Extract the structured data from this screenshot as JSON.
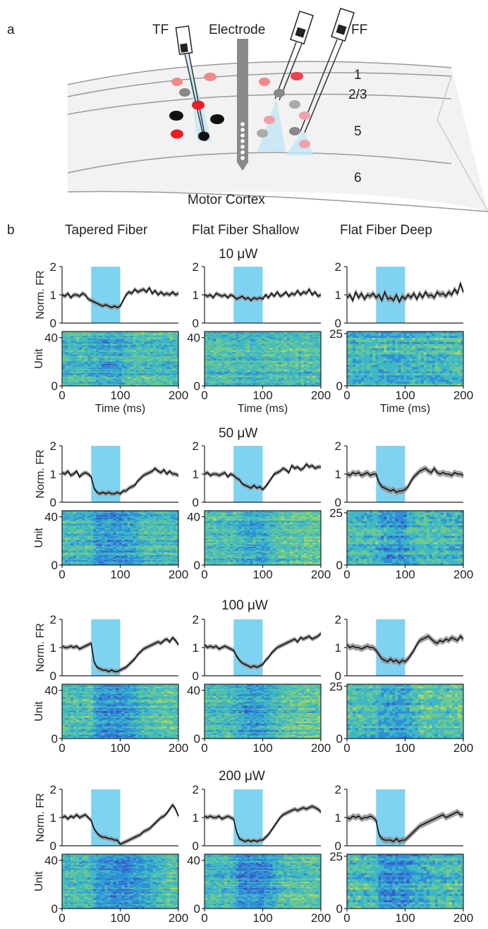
{
  "panel_a": {
    "letter": "a",
    "labels": {
      "tf": "TF",
      "electrode": "Electrode",
      "ff": "FF",
      "region": "Motor Cortex"
    },
    "layers": [
      "1",
      "2/3",
      "5",
      "6"
    ]
  },
  "panel_b": {
    "letter": "b",
    "columns": [
      "Tapered Fiber",
      "Flat Fiber Shallow",
      "Flat Fiber Deep"
    ],
    "powers": [
      "10 μW",
      "50 μW",
      "100 μW",
      "200 μW"
    ],
    "fr_ylabel": "Norm. FR",
    "unit_ylabel": "Unit",
    "xlabel": "Time (ms)",
    "fr_yticks": [
      "0",
      "1",
      "2"
    ],
    "xticks": [
      "0",
      "100",
      "200"
    ],
    "unit_ticks": {
      "tapered": [
        "0",
        "40"
      ],
      "shallow": [
        "0",
        "40"
      ],
      "deep": [
        "0",
        "25"
      ]
    }
  },
  "chart_data": {
    "type": "line",
    "x": [
      0,
      5,
      10,
      15,
      20,
      25,
      30,
      35,
      40,
      45,
      50,
      55,
      60,
      65,
      70,
      75,
      80,
      85,
      90,
      95,
      100,
      105,
      110,
      115,
      120,
      125,
      130,
      135,
      140,
      145,
      150,
      155,
      160,
      165,
      170,
      175,
      180,
      185,
      190,
      195,
      200
    ],
    "xlabel": "Time (ms)",
    "ylabel": "Norm. FR",
    "xlim": [
      0,
      200
    ],
    "ylim": [
      0,
      2
    ],
    "light_on_ms": [
      50,
      100
    ],
    "light_color": "#7fd3f0",
    "panels": [
      {
        "column": "Tapered Fiber",
        "power": "10 μW",
        "units": 45,
        "values": [
          1.0,
          0.95,
          1.05,
          0.9,
          1.0,
          1.0,
          0.95,
          1.05,
          1.0,
          0.85,
          0.8,
          0.75,
          0.7,
          0.65,
          0.6,
          0.65,
          0.6,
          0.55,
          0.6,
          0.55,
          0.6,
          0.8,
          1.0,
          1.1,
          1.05,
          1.2,
          1.1,
          1.15,
          1.2,
          1.1,
          1.25,
          1.05,
          1.15,
          1.0,
          1.1,
          1.0,
          1.05,
          1.0,
          1.1,
          1.0,
          1.05
        ]
      },
      {
        "column": "Flat Fiber Shallow",
        "power": "10 μW",
        "units": 45,
        "values": [
          1.0,
          0.95,
          1.0,
          0.9,
          1.05,
          1.0,
          0.95,
          1.0,
          0.9,
          1.0,
          0.95,
          0.85,
          0.9,
          0.95,
          0.85,
          0.9,
          0.8,
          0.9,
          0.85,
          0.9,
          0.85,
          1.0,
          0.9,
          1.05,
          0.95,
          1.1,
          0.95,
          1.0,
          1.1,
          0.95,
          1.05,
          1.0,
          1.15,
          1.0,
          1.1,
          1.05,
          1.2,
          1.0,
          1.1,
          0.95,
          1.0
        ]
      },
      {
        "column": "Flat Fiber Deep",
        "power": "10 μW",
        "units": 26,
        "values": [
          0.9,
          1.0,
          0.8,
          1.1,
          0.9,
          1.05,
          0.85,
          1.0,
          0.95,
          1.05,
          0.9,
          1.0,
          0.8,
          1.1,
          0.85,
          0.9,
          0.8,
          1.0,
          0.75,
          0.95,
          0.85,
          1.0,
          0.9,
          1.05,
          0.85,
          1.05,
          0.9,
          1.1,
          0.95,
          1.0,
          0.9,
          1.1,
          1.0,
          1.05,
          0.95,
          1.1,
          1.0,
          1.2,
          1.05,
          1.4,
          1.1
        ]
      },
      {
        "column": "Tapered Fiber",
        "power": "50 μW",
        "units": 45,
        "values": [
          1.05,
          1.0,
          1.1,
          0.95,
          1.0,
          1.1,
          0.9,
          1.0,
          1.05,
          1.0,
          0.9,
          0.5,
          0.35,
          0.3,
          0.35,
          0.3,
          0.35,
          0.3,
          0.3,
          0.35,
          0.3,
          0.4,
          0.4,
          0.5,
          0.55,
          0.6,
          0.75,
          0.85,
          0.95,
          1.0,
          1.05,
          1.1,
          1.2,
          1.1,
          1.05,
          1.15,
          1.0,
          1.1,
          1.0,
          1.0,
          0.95
        ]
      },
      {
        "column": "Flat Fiber Shallow",
        "power": "50 μW",
        "units": 45,
        "values": [
          1.0,
          1.05,
          0.95,
          1.0,
          1.0,
          0.95,
          1.0,
          1.05,
          0.9,
          1.0,
          0.95,
          0.85,
          0.8,
          0.65,
          0.6,
          0.55,
          0.5,
          0.6,
          0.5,
          0.55,
          0.45,
          0.55,
          0.7,
          0.85,
          1.0,
          1.05,
          1.1,
          1.2,
          1.15,
          1.05,
          1.3,
          1.2,
          1.25,
          1.15,
          1.2,
          1.35,
          1.25,
          1.3,
          1.2,
          1.25,
          1.25
        ]
      },
      {
        "column": "Flat Fiber Deep",
        "power": "50 μW",
        "units": 26,
        "values": [
          1.0,
          0.95,
          1.05,
          1.0,
          1.05,
          0.95,
          1.0,
          1.05,
          0.95,
          1.0,
          1.0,
          0.7,
          0.55,
          0.5,
          0.45,
          0.4,
          0.45,
          0.35,
          0.4,
          0.4,
          0.45,
          0.55,
          0.75,
          0.9,
          1.0,
          1.1,
          1.15,
          1.2,
          1.1,
          1.05,
          1.2,
          1.05,
          1.0,
          1.05,
          1.0,
          1.0,
          0.95,
          1.05,
          1.0,
          1.0,
          0.95
        ]
      },
      {
        "column": "Tapered Fiber",
        "power": "100 μW",
        "units": 45,
        "values": [
          1.05,
          1.0,
          1.0,
          1.05,
          1.0,
          1.05,
          0.95,
          1.0,
          1.05,
          1.1,
          1.15,
          0.5,
          0.3,
          0.25,
          0.2,
          0.2,
          0.15,
          0.2,
          0.15,
          0.15,
          0.2,
          0.25,
          0.3,
          0.4,
          0.5,
          0.6,
          0.75,
          0.85,
          0.95,
          1.0,
          1.05,
          1.1,
          1.15,
          1.2,
          1.15,
          1.25,
          1.3,
          1.2,
          1.35,
          1.25,
          1.1
        ]
      },
      {
        "column": "Flat Fiber Shallow",
        "power": "100 μW",
        "units": 45,
        "values": [
          1.1,
          1.0,
          1.05,
          1.0,
          1.05,
          0.95,
          1.0,
          1.05,
          1.0,
          0.95,
          0.9,
          0.7,
          0.55,
          0.45,
          0.4,
          0.35,
          0.3,
          0.35,
          0.3,
          0.35,
          0.4,
          0.55,
          0.65,
          0.8,
          0.9,
          1.0,
          1.05,
          1.1,
          1.15,
          1.2,
          1.25,
          1.3,
          1.2,
          1.35,
          1.3,
          1.35,
          1.4,
          1.3,
          1.35,
          1.4,
          1.5
        ]
      },
      {
        "column": "Flat Fiber Deep",
        "power": "100 μW",
        "units": 26,
        "values": [
          1.1,
          1.0,
          1.05,
          1.0,
          1.0,
          0.95,
          1.0,
          1.05,
          1.0,
          1.0,
          0.9,
          0.75,
          0.6,
          0.55,
          0.5,
          0.6,
          0.5,
          0.55,
          0.45,
          0.55,
          0.5,
          0.6,
          0.75,
          0.9,
          1.1,
          1.25,
          1.3,
          1.35,
          1.4,
          1.3,
          1.2,
          1.15,
          1.25,
          1.2,
          1.3,
          1.25,
          1.35,
          1.3,
          1.25,
          1.4,
          1.3
        ]
      },
      {
        "column": "Tapered Fiber",
        "power": "200 μW",
        "units": 45,
        "values": [
          1.0,
          1.05,
          0.95,
          1.05,
          1.0,
          1.1,
          1.0,
          1.05,
          1.1,
          1.0,
          0.9,
          0.6,
          0.45,
          0.35,
          0.3,
          0.3,
          0.25,
          0.25,
          0.2,
          0.2,
          0.05,
          0.1,
          0.15,
          0.2,
          0.25,
          0.3,
          0.35,
          0.4,
          0.5,
          0.55,
          0.6,
          0.7,
          0.8,
          0.9,
          1.0,
          1.05,
          1.15,
          1.3,
          1.45,
          1.3,
          1.05
        ]
      },
      {
        "column": "Flat Fiber Shallow",
        "power": "200 μW",
        "units": 45,
        "values": [
          1.05,
          1.0,
          1.05,
          1.0,
          1.0,
          1.05,
          0.95,
          1.0,
          1.05,
          1.0,
          0.95,
          0.5,
          0.25,
          0.2,
          0.15,
          0.2,
          0.15,
          0.2,
          0.15,
          0.2,
          0.2,
          0.3,
          0.4,
          0.55,
          0.7,
          0.85,
          1.0,
          1.1,
          1.15,
          1.2,
          1.25,
          1.3,
          1.25,
          1.3,
          1.35,
          1.3,
          1.35,
          1.4,
          1.35,
          1.3,
          1.2
        ]
      },
      {
        "column": "Flat Fiber Deep",
        "power": "200 μW",
        "units": 26,
        "values": [
          1.0,
          0.95,
          1.05,
          1.0,
          1.05,
          0.95,
          1.0,
          1.0,
          1.05,
          1.0,
          0.9,
          0.4,
          0.25,
          0.2,
          0.2,
          0.2,
          0.15,
          0.25,
          0.15,
          0.2,
          0.2,
          0.3,
          0.4,
          0.5,
          0.6,
          0.7,
          0.75,
          0.8,
          0.85,
          0.9,
          0.95,
          1.0,
          1.05,
          1.1,
          1.0,
          1.05,
          1.1,
          1.15,
          1.2,
          1.1,
          1.1
        ]
      }
    ],
    "heatmap_colormap": [
      "#3b3a9c",
      "#3c58c8",
      "#2f8fd6",
      "#3fb7c6",
      "#6cc990",
      "#b5d65a",
      "#f2d23a",
      "#e03b2a"
    ]
  }
}
